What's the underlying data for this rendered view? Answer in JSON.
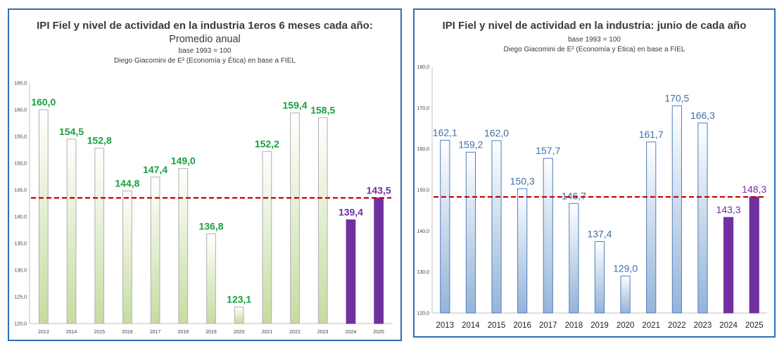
{
  "left": {
    "title": "IPI Fiel y nivel de actividad en la industria 1eros 6 meses cada año:",
    "subtitle": "Promedio anual",
    "base": "base 1993 = 100",
    "credit": "Diego Giacomini de E² (Economía y Ética) en base a FIEL"
  },
  "right": {
    "title": "IPI Fiel y nivel de actividad en la industria: junio de cada año",
    "base": "base 1993 = 100",
    "credit": "Diego Giacomini de E² (Economía y Ética) en base a FIEL"
  },
  "colors": {
    "left_bar_top": "#ffffff",
    "left_bar_bottom": "#c6dca0",
    "left_bar_border": "#b0b0b0",
    "left_label": "#18a040",
    "right_bar_top": "#ffffff",
    "right_bar_bottom": "#94b4d8",
    "right_bar_border": "#4f7fbf",
    "right_label": "#3d6fa8",
    "highlight_bar": "#7030a0",
    "highlight_label": "#7030a0",
    "reference_line": "#c00000",
    "panel_border": "#2f6fb5"
  },
  "chart_data": [
    {
      "type": "bar",
      "title": "IPI Fiel y nivel de actividad en la industria 1eros 6 meses cada año:",
      "subtitle": "Promedio anual",
      "categories": [
        "2013",
        "2014",
        "2015",
        "2016",
        "2017",
        "2018",
        "2019",
        "2020",
        "2021",
        "2022",
        "2023",
        "2024",
        "2025"
      ],
      "values": [
        160.0,
        154.5,
        152.8,
        144.8,
        147.4,
        149.0,
        136.8,
        123.1,
        152.2,
        159.4,
        158.5,
        139.4,
        143.5
      ],
      "value_labels": [
        "160,0",
        "154,5",
        "152,8",
        "144,8",
        "147,4",
        "149,0",
        "136,8",
        "123,1",
        "152,2",
        "159,4",
        "158,5",
        "139,4",
        "143,5"
      ],
      "highlight": [
        "2024",
        "2025"
      ],
      "reference_line": 143.5,
      "ylim": [
        120,
        165
      ],
      "yticks": [
        120,
        125,
        130,
        135,
        140,
        145,
        150,
        155,
        160,
        165
      ],
      "ytick_labels": [
        "120,0",
        "125,0",
        "130,0",
        "135,0",
        "140,0",
        "145,0",
        "150,0",
        "155,0",
        "160,0",
        "165,0"
      ],
      "xlabel": "",
      "ylabel": "",
      "grid": false
    },
    {
      "type": "bar",
      "title": "IPI Fiel y nivel de actividad en la industria: junio de cada año",
      "categories": [
        "2013",
        "2014",
        "2015",
        "2016",
        "2017",
        "2018",
        "2019",
        "2020",
        "2021",
        "2022",
        "2023",
        "2024",
        "2025"
      ],
      "values": [
        162.1,
        159.2,
        162.0,
        150.3,
        157.7,
        146.7,
        137.4,
        129.0,
        161.7,
        170.5,
        166.3,
        143.3,
        148.3
      ],
      "value_labels": [
        "162,1",
        "159,2",
        "162,0",
        "150,3",
        "157,7",
        "146,7",
        "137,4",
        "129,0",
        "161,7",
        "170,5",
        "166,3",
        "143,3",
        "148,3"
      ],
      "highlight": [
        "2024",
        "2025"
      ],
      "reference_line": 148.3,
      "ylim": [
        120,
        180
      ],
      "yticks": [
        120,
        130,
        140,
        150,
        160,
        170,
        180
      ],
      "ytick_labels": [
        "120,0",
        "130,0",
        "140,0",
        "150,0",
        "160,0",
        "170,0",
        "180,0"
      ],
      "xlabel": "",
      "ylabel": "",
      "grid": false
    }
  ]
}
